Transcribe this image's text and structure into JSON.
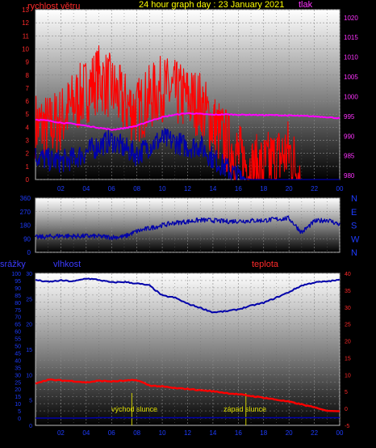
{
  "header": {
    "wind_label": "rychlost větru",
    "graph_title": "24 hour graph day : 23 January 2021",
    "pressure_label": "tlak"
  },
  "bottom_labels": {
    "rain_label": "srážky",
    "humidity_label": "vlhkost",
    "temperature_label": "teplota",
    "sunrise_label": "východ slunce",
    "sunset_label": "západ slunce"
  },
  "colors": {
    "wind": "#ff0000",
    "gust": "#ff0000",
    "pressure": "#ff00ff",
    "direction": "#0000aa",
    "humidity": "#0000aa",
    "temperature": "#ff0000",
    "rain": "#0000aa",
    "sun": "#cccc00"
  },
  "chart_data": [
    {
      "type": "line",
      "title": "24 hour graph day : 23 January 2021",
      "left_axis": {
        "label": "rychlost větru",
        "ylim": [
          0,
          13
        ],
        "ticks": [
          0,
          1,
          2,
          3,
          4,
          5,
          6,
          7,
          8,
          9,
          10,
          11,
          12,
          13
        ]
      },
      "right_axis": {
        "label": "tlak",
        "ylim": [
          979,
          1022
        ],
        "ticks": [
          980,
          985,
          990,
          995,
          1000,
          1005,
          1010,
          1015,
          1020
        ]
      },
      "x_ticks": [
        "02",
        "04",
        "06",
        "08",
        "10",
        "12",
        "14",
        "16",
        "18",
        "20",
        "22",
        "00"
      ],
      "xlim": [
        0,
        24
      ],
      "series": [
        {
          "name": "rychlost větru",
          "axis": "left",
          "x": [
            0,
            1,
            2,
            3,
            4,
            5,
            6,
            7,
            8,
            9,
            10,
            11,
            12,
            13,
            14,
            15,
            16,
            17,
            18,
            19,
            20,
            21,
            22,
            23,
            24
          ],
          "values": [
            1.8,
            1.5,
            1.4,
            1.6,
            2.1,
            2.6,
            3.0,
            2.4,
            1.9,
            2.6,
            3.1,
            2.9,
            2.5,
            2.6,
            1.6,
            0.9,
            0.2,
            0,
            0,
            0,
            0,
            0,
            0,
            0,
            0
          ]
        },
        {
          "name": "",
          "axis": "left",
          "x": [
            0,
            1,
            2,
            3,
            4,
            5,
            6,
            7,
            8,
            9,
            10,
            11,
            12,
            13,
            14,
            15,
            16,
            17,
            18,
            19,
            20,
            21,
            22,
            23,
            24
          ],
          "values": [
            4.2,
            4.0,
            4.6,
            5.8,
            6.8,
            7.8,
            7.0,
            5.8,
            5.2,
            6.2,
            7.0,
            6.6,
            6.2,
            5.8,
            4.2,
            3.0,
            1.8,
            0.8,
            1.0,
            1.5,
            2.2,
            0,
            0,
            0,
            0
          ]
        },
        {
          "name": "tlak",
          "axis": "right",
          "x": [
            0,
            1,
            2,
            3,
            4,
            5,
            6,
            7,
            8,
            9,
            10,
            11,
            12,
            13,
            14,
            15,
            16,
            17,
            18,
            19,
            20,
            21,
            22,
            23,
            24
          ],
          "values": [
            994.2,
            993.9,
            993.4,
            993.1,
            992.6,
            992.1,
            991.6,
            992.0,
            992.6,
            993.8,
            994.8,
            995.4,
            995.8,
            995.6,
            995.4,
            995.5,
            995.4,
            995.4,
            995.3,
            995.3,
            995.2,
            995.1,
            995.0,
            994.8,
            994.5
          ]
        }
      ],
      "grid": true
    },
    {
      "type": "line",
      "right_axis_labels": [
        "N",
        "W",
        "S",
        "E",
        "N"
      ],
      "left_axis": {
        "ylim": [
          0,
          360
        ],
        "ticks": [
          0,
          90,
          180,
          270,
          360
        ]
      },
      "xlim": [
        0,
        24
      ],
      "series": [
        {
          "name": "",
          "axis": "left",
          "x": [
            0,
            1,
            2,
            3,
            4,
            5,
            6,
            7,
            8,
            9,
            10,
            11,
            12,
            13,
            14,
            15,
            16,
            17,
            18,
            19,
            20,
            21,
            22,
            23,
            24
          ],
          "values": [
            100,
            104,
            110,
            107,
            108,
            106,
            100,
            104,
            140,
            160,
            180,
            196,
            204,
            214,
            212,
            205,
            208,
            210,
            212,
            220,
            226,
            132,
            205,
            216,
            185
          ]
        }
      ],
      "grid": true
    },
    {
      "type": "line",
      "left_axis": {
        "label": "srážky",
        "ylim": [
          -5,
          100
        ],
        "ticks": [
          0,
          5,
          10,
          15,
          20,
          25,
          30,
          35,
          40,
          45,
          50,
          55,
          60,
          65,
          70,
          75,
          80,
          85,
          90,
          95,
          100
        ]
      },
      "inner_left_axis": {
        "label": "vlhkost",
        "ylim": [
          0,
          30
        ],
        "ticks": [
          0,
          5,
          10,
          15,
          20,
          25,
          30
        ]
      },
      "right_axis": {
        "label": "teplota",
        "ylim": [
          -5,
          40
        ],
        "ticks": [
          -5,
          0,
          5,
          10,
          15,
          20,
          25,
          30,
          35,
          40
        ]
      },
      "x_ticks": [
        "02",
        "04",
        "06",
        "08",
        "10",
        "12",
        "14",
        "16",
        "18",
        "20",
        "22",
        "00"
      ],
      "xlim": [
        0,
        24
      ],
      "annotations": [
        {
          "text": "východ slunce",
          "x": 7.6
        },
        {
          "text": "západ slunce",
          "x": 16.6
        }
      ],
      "series": [
        {
          "name": "vlhkost",
          "axis": "inner_left",
          "x": [
            0,
            1,
            2,
            3,
            4,
            5,
            6,
            7,
            8,
            9,
            10,
            11,
            12,
            13,
            14,
            15,
            16,
            17,
            18,
            19,
            20,
            21,
            22,
            23,
            24
          ],
          "values": [
            28.7,
            28.3,
            28.6,
            28.4,
            29.0,
            28.7,
            28.2,
            28.3,
            28.0,
            27.6,
            25.6,
            25.2,
            24.0,
            23.2,
            22.3,
            22.5,
            22.9,
            23.6,
            24.2,
            25.2,
            26.3,
            27.6,
            28.2,
            28.4,
            28.7
          ]
        },
        {
          "name": "teplota",
          "axis": "right",
          "x": [
            0,
            1,
            2,
            3,
            4,
            5,
            6,
            7,
            8,
            9,
            10,
            11,
            12,
            13,
            14,
            15,
            16,
            17,
            18,
            19,
            20,
            21,
            22,
            23,
            24
          ],
          "values": [
            7.5,
            8.5,
            8.3,
            8.1,
            7.7,
            8.2,
            8.0,
            8.2,
            8.4,
            6.8,
            6.5,
            6.0,
            5.8,
            5.4,
            5.1,
            4.6,
            4.2,
            3.7,
            3.2,
            2.6,
            2.0,
            1.2,
            0.3,
            -0.7,
            -0.8
          ]
        },
        {
          "name": "srážky",
          "axis": "left",
          "x": [
            0,
            4,
            5,
            24
          ],
          "values": [
            0,
            0,
            0.3,
            0.3
          ]
        }
      ],
      "grid": true
    }
  ]
}
